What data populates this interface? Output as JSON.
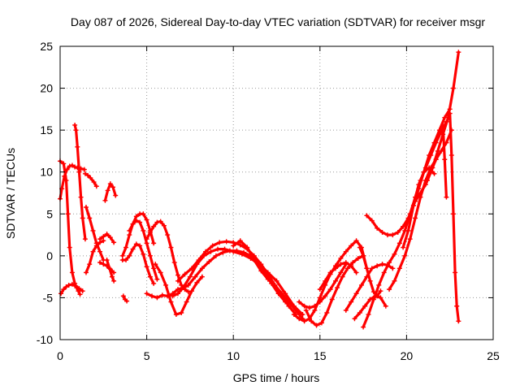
{
  "chart_data": {
    "type": "line",
    "title": "Day 087 of 2026, Sidereal Day-to-day VTEC variation (SDTVAR) for receiver msgr",
    "xlabel": "GPS time / hours",
    "ylabel": "SDTVAR / TECUs",
    "xlim": [
      0,
      25
    ],
    "ylim": [
      -10,
      25
    ],
    "xticks": [
      0,
      5,
      10,
      15,
      20,
      25
    ],
    "yticks": [
      -10,
      -5,
      0,
      5,
      10,
      15,
      20,
      25
    ],
    "grid": true,
    "legend": "none",
    "marker": "+",
    "color": "#ff0000",
    "series": [
      {
        "name": "s1",
        "x": [
          0.0,
          0.2,
          0.35,
          0.45,
          0.55,
          0.7,
          0.85,
          0.95,
          1.05,
          1.15
        ],
        "y": [
          11.3,
          11.0,
          9.0,
          5.0,
          1.0,
          -2.0,
          -3.3,
          -3.8,
          -4.2,
          -4.6
        ]
      },
      {
        "name": "s2",
        "x": [
          0.05,
          0.2,
          0.35,
          0.5,
          0.7,
          0.9,
          1.1,
          1.3
        ],
        "y": [
          -4.5,
          -4.0,
          -3.7,
          -3.5,
          -3.4,
          -3.6,
          -3.9,
          -4.2
        ]
      },
      {
        "name": "s3",
        "x": [
          0.0,
          0.1,
          0.25,
          0.4,
          0.55,
          0.7,
          0.85,
          1.0,
          1.2,
          1.4
        ],
        "y": [
          6.8,
          8.0,
          9.5,
          10.3,
          10.7,
          10.8,
          10.6,
          10.5,
          10.4,
          10.3
        ]
      },
      {
        "name": "s4",
        "x": [
          0.85,
          0.92,
          1.0,
          1.1,
          1.2,
          1.3,
          1.45
        ],
        "y": [
          15.6,
          15.0,
          13.0,
          10.0,
          7.0,
          4.5,
          2.0
        ]
      },
      {
        "name": "s5",
        "x": [
          1.45,
          1.6,
          1.75,
          1.95,
          2.1
        ],
        "y": [
          9.8,
          9.6,
          9.3,
          8.8,
          8.3
        ]
      },
      {
        "name": "s6",
        "x": [
          1.5,
          1.7,
          1.9,
          2.1,
          2.3,
          2.5
        ],
        "y": [
          5.8,
          4.5,
          3.0,
          1.5,
          0.5,
          -0.5
        ]
      },
      {
        "name": "s7",
        "x": [
          1.5,
          1.7,
          1.9,
          2.1,
          2.3,
          2.5
        ],
        "y": [
          -2.0,
          -1.0,
          0.5,
          1.2,
          1.6,
          1.8
        ]
      },
      {
        "name": "s8",
        "x": [
          2.3,
          2.5,
          2.7,
          2.9,
          3.1
        ],
        "y": [
          -0.8,
          -1.0,
          -1.2,
          -1.6,
          -2.0
        ]
      },
      {
        "name": "s9",
        "x": [
          2.3,
          2.5,
          2.7,
          2.9,
          3.1
        ],
        "y": [
          2.0,
          2.3,
          2.6,
          2.2,
          1.6
        ]
      },
      {
        "name": "s10",
        "x": [
          2.6,
          2.75,
          2.9,
          3.05,
          3.2
        ],
        "y": [
          6.6,
          7.8,
          8.6,
          8.2,
          7.2
        ]
      },
      {
        "name": "s11",
        "x": [
          2.7,
          2.85,
          3.0,
          3.1
        ],
        "y": [
          -0.5,
          -1.5,
          -2.5,
          -3.0
        ]
      },
      {
        "name": "s12",
        "x": [
          3.65,
          3.75,
          3.85
        ],
        "y": [
          -4.8,
          -5.2,
          -5.4
        ]
      },
      {
        "name": "s13",
        "x": [
          3.6,
          3.8,
          4.0,
          4.2,
          4.4,
          4.6,
          4.8,
          5.0,
          5.2,
          5.4
        ],
        "y": [
          0.0,
          1.0,
          2.5,
          3.8,
          4.7,
          5.0,
          5.0,
          4.3,
          3.0,
          1.5
        ]
      },
      {
        "name": "s14",
        "x": [
          3.6,
          3.8,
          4.0,
          4.2,
          4.4,
          4.6,
          4.8,
          5.0,
          5.2,
          5.4
        ],
        "y": [
          -0.5,
          -0.5,
          0.0,
          0.8,
          1.4,
          1.2,
          0.2,
          -1.3,
          -2.5,
          -3.3
        ]
      },
      {
        "name": "s15",
        "x": [
          4.0,
          4.2,
          4.4,
          4.6,
          4.8,
          5.0,
          5.2,
          5.4,
          5.6
        ],
        "y": [
          3.0,
          3.8,
          4.2,
          4.0,
          3.0,
          1.5,
          0.0,
          -1.5,
          -2.8
        ]
      },
      {
        "name": "s16",
        "x": [
          5.0,
          5.2,
          5.4,
          5.6,
          5.8,
          6.0,
          6.2,
          6.4,
          6.6,
          6.8,
          7.0,
          7.2,
          7.4
        ],
        "y": [
          2.0,
          2.8,
          3.5,
          4.0,
          4.1,
          3.6,
          2.5,
          1.0,
          -0.8,
          -2.3,
          -3.5,
          -4.0,
          -4.3
        ]
      },
      {
        "name": "s17",
        "x": [
          5.0,
          5.3,
          5.6,
          5.9,
          6.2,
          6.5,
          6.8,
          7.1
        ],
        "y": [
          -4.5,
          -4.8,
          -5.0,
          -4.7,
          -4.8,
          -4.5,
          -4.0,
          -3.8
        ]
      },
      {
        "name": "s18",
        "x": [
          5.5,
          5.8,
          6.1,
          6.4,
          6.7,
          7.0,
          7.3,
          7.6,
          7.9,
          8.2
        ],
        "y": [
          -1.0,
          -2.0,
          -3.5,
          -5.5,
          -7.0,
          -6.8,
          -5.5,
          -4.2,
          -3.2,
          -2.5
        ]
      },
      {
        "name": "s19",
        "x": [
          6.5,
          6.8,
          7.1,
          7.5,
          7.9,
          8.3,
          8.7,
          9.1,
          9.5,
          10.0,
          10.5,
          11.0,
          11.5,
          12.0,
          12.5,
          13.0,
          13.5,
          14.0
        ],
        "y": [
          -4.8,
          -4.5,
          -3.8,
          -2.5,
          -1.0,
          0.0,
          0.5,
          0.8,
          0.8,
          0.5,
          0.2,
          -0.3,
          -1.0,
          -2.0,
          -3.0,
          -4.5,
          -6.0,
          -7.0
        ]
      },
      {
        "name": "s20",
        "x": [
          6.8,
          7.2,
          7.6,
          8.0,
          8.4,
          8.8,
          9.2,
          9.6,
          10.0,
          10.4,
          10.8,
          11.2,
          11.6,
          12.0,
          12.4,
          12.8,
          13.2,
          13.6
        ],
        "y": [
          -3.0,
          -2.2,
          -1.5,
          -0.5,
          0.5,
          1.2,
          1.6,
          1.7,
          1.6,
          1.3,
          0.8,
          0.0,
          -1.0,
          -2.2,
          -3.5,
          -4.8,
          -6.0,
          -7.0
        ]
      },
      {
        "name": "s21",
        "x": [
          7.0,
          7.4,
          7.8,
          8.2,
          8.6,
          9.0,
          9.4,
          9.8,
          10.2,
          10.6,
          11.0,
          11.4,
          11.8,
          12.2,
          12.6,
          13.0
        ],
        "y": [
          -4.0,
          -3.5,
          -2.5,
          -1.5,
          -0.7,
          0.0,
          0.4,
          0.6,
          0.6,
          0.4,
          0.0,
          -0.8,
          -2.0,
          -3.3,
          -4.5,
          -5.5
        ]
      },
      {
        "name": "s22",
        "x": [
          10.0,
          10.4,
          10.8,
          11.2,
          11.6,
          12.0,
          12.4,
          12.8,
          13.2,
          13.6,
          14.0
        ],
        "y": [
          1.2,
          1.8,
          1.0,
          -0.5,
          -1.8,
          -2.8,
          -3.5,
          -4.5,
          -5.5,
          -6.5,
          -7.5
        ]
      },
      {
        "name": "s23",
        "x": [
          13.5,
          13.8,
          14.1,
          14.4,
          14.7,
          15.0,
          15.3,
          15.6,
          15.9,
          16.2,
          16.5,
          16.8,
          17.1,
          17.4,
          17.7
        ],
        "y": [
          -7.0,
          -7.5,
          -7.8,
          -7.5,
          -6.5,
          -5.0,
          -3.5,
          -2.2,
          -1.2,
          -0.3,
          0.5,
          1.2,
          1.8,
          1.0,
          -1.5
        ]
      },
      {
        "name": "s24",
        "x": [
          13.8,
          14.1,
          14.4,
          14.7,
          15.0,
          15.3,
          15.6,
          15.9,
          16.2,
          16.5
        ],
        "y": [
          -5.5,
          -6.0,
          -6.2,
          -6.0,
          -5.5,
          -4.8,
          -4.0,
          -3.0,
          -2.0,
          -1.0
        ]
      },
      {
        "name": "s25",
        "x": [
          14.2,
          14.5,
          14.8,
          15.1,
          15.4,
          15.7,
          16.0,
          16.3,
          16.6,
          16.9,
          17.2,
          17.5
        ],
        "y": [
          -6.5,
          -7.8,
          -8.3,
          -8.0,
          -6.8,
          -5.2,
          -3.8,
          -2.5,
          -1.5,
          -0.8,
          -0.3,
          0.0
        ]
      },
      {
        "name": "s26",
        "x": [
          15.0,
          15.3,
          15.6,
          15.9,
          16.2,
          16.5,
          16.8,
          17.1
        ],
        "y": [
          -4.0,
          -3.0,
          -2.0,
          -1.5,
          -1.0,
          -0.8,
          -1.2,
          -2.0
        ]
      },
      {
        "name": "s27",
        "x": [
          16.5,
          16.8,
          17.1,
          17.4,
          17.7,
          18.0,
          18.3,
          18.6,
          18.9,
          19.2
        ],
        "y": [
          -6.5,
          -5.5,
          -4.5,
          -3.5,
          -2.5,
          -1.5,
          -1.2,
          -1.0,
          -1.1,
          -1.5
        ]
      },
      {
        "name": "s28",
        "x": [
          17.0,
          17.3,
          17.6,
          17.9,
          18.2,
          18.5,
          18.8
        ],
        "y": [
          -7.5,
          -6.8,
          -6.0,
          -5.2,
          -4.8,
          -5.0,
          -6.0
        ]
      },
      {
        "name": "s29",
        "x": [
          17.3,
          17.5,
          17.7,
          17.9,
          18.1,
          18.3,
          18.5
        ],
        "y": [
          1.0,
          0.0,
          -1.5,
          -3.0,
          -4.3,
          -4.8,
          -4.2
        ]
      },
      {
        "name": "s30",
        "x": [
          17.5,
          17.8,
          18.1,
          18.4,
          18.7,
          19.0,
          19.3,
          19.6,
          19.9,
          20.2,
          20.5,
          20.8,
          21.1,
          21.4,
          21.7,
          22.0,
          22.3
        ],
        "y": [
          -8.5,
          -7.0,
          -5.2,
          -3.5,
          -2.0,
          -0.8,
          0.2,
          1.5,
          3.0,
          5.0,
          7.0,
          9.0,
          10.5,
          12.0,
          13.5,
          14.8,
          16.0
        ]
      },
      {
        "name": "s31",
        "x": [
          17.7,
          18.0,
          18.3,
          18.6,
          18.9,
          19.2,
          19.5,
          19.8,
          20.1,
          20.4,
          20.7,
          21.0,
          21.3,
          21.6,
          21.9,
          22.2,
          22.5
        ],
        "y": [
          4.8,
          4.2,
          3.3,
          2.8,
          2.5,
          2.5,
          2.8,
          3.5,
          4.5,
          6.0,
          8.0,
          10.0,
          12.0,
          13.5,
          15.0,
          16.5,
          17.5
        ]
      },
      {
        "name": "s32",
        "x": [
          19.0,
          19.3,
          19.6,
          19.9,
          20.2,
          20.5,
          20.8,
          21.1,
          21.4,
          21.7
        ],
        "y": [
          -4.0,
          -3.0,
          -1.5,
          0.0,
          2.0,
          4.5,
          7.0,
          9.0,
          10.5,
          11.5
        ]
      },
      {
        "name": "s33",
        "x": [
          19.8,
          20.1,
          20.4,
          20.7,
          21.0,
          21.3,
          21.6
        ],
        "y": [
          1.0,
          3.0,
          6.0,
          8.5,
          10.0,
          10.5,
          9.8
        ]
      },
      {
        "name": "s34",
        "x": [
          20.5,
          20.8,
          21.1,
          21.4,
          21.7,
          22.0,
          22.3,
          22.6
        ],
        "y": [
          6.5,
          7.5,
          8.5,
          10.0,
          11.5,
          12.5,
          13.5,
          15.0
        ]
      },
      {
        "name": "s35",
        "x": [
          21.2,
          21.5,
          21.8,
          22.1,
          22.4,
          22.7,
          23.0
        ],
        "y": [
          9.0,
          10.5,
          12.5,
          14.5,
          16.5,
          20.0,
          24.3
        ]
      },
      {
        "name": "s36",
        "x": [
          22.5,
          22.6,
          22.7,
          22.8,
          22.9,
          23.0
        ],
        "y": [
          17.0,
          12.0,
          5.0,
          -2.0,
          -6.0,
          -7.8
        ]
      },
      {
        "name": "s37",
        "x": [
          22.1,
          22.2,
          22.3
        ],
        "y": [
          15.5,
          11.5,
          7.0
        ]
      }
    ]
  }
}
